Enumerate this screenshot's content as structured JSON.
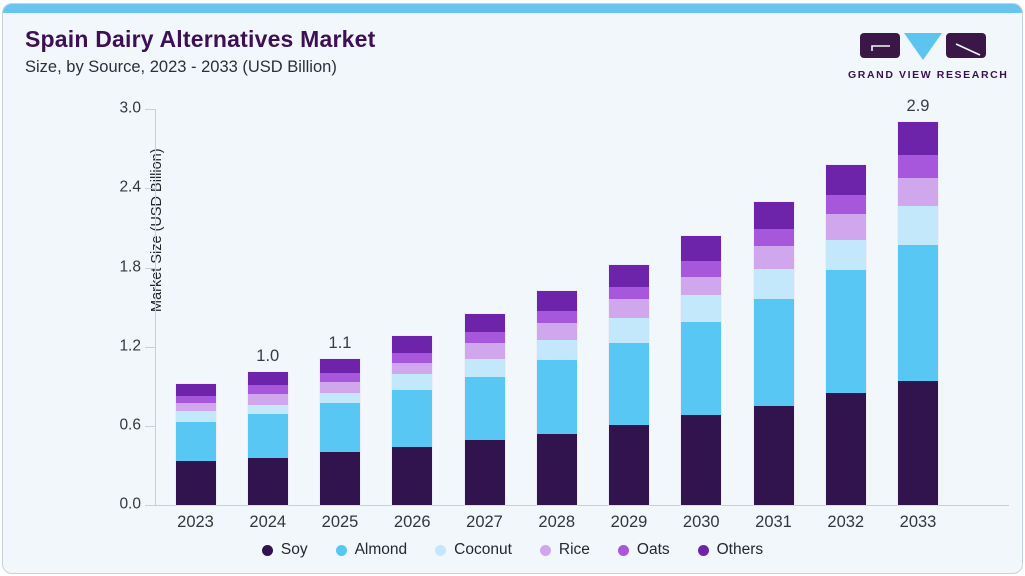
{
  "page": {
    "title": "Spain Dairy Alternatives Market",
    "subtitle": "Size, by Source, 2023 - 2033 (USD Billion)",
    "brand_name": "GRAND VIEW RESEARCH"
  },
  "colors": {
    "accent_strip": "#67c5ef",
    "card_background": "#f2f7fb",
    "title_purple": "#3d1056",
    "axis_line": "#c8cfd8",
    "logo_dark": "#3a1747",
    "logo_blue": "#5bc5f0"
  },
  "chart_data": {
    "type": "bar",
    "stacked": true,
    "title": "Spain Dairy Alternatives Market Size, by Source, 2023 - 2033 (USD Billion)",
    "xlabel": "",
    "ylabel": "Market Size (USD Billion)",
    "ylim": [
      0,
      3.0
    ],
    "ytick_labels": [
      "0.0",
      "0.6",
      "1.2",
      "1.8",
      "2.4",
      "3.0"
    ],
    "grid": false,
    "legend_position": "bottom",
    "categories": [
      "2023",
      "2024",
      "2025",
      "2026",
      "2027",
      "2028",
      "2029",
      "2030",
      "2031",
      "2032",
      "2033"
    ],
    "series": [
      {
        "name": "Soy",
        "color": "#31134d",
        "values": [
          0.33,
          0.36,
          0.4,
          0.44,
          0.49,
          0.54,
          0.61,
          0.68,
          0.75,
          0.85,
          0.94
        ]
      },
      {
        "name": "Almond",
        "color": "#58c7f3",
        "values": [
          0.3,
          0.33,
          0.37,
          0.43,
          0.48,
          0.56,
          0.62,
          0.71,
          0.81,
          0.93,
          1.03
        ]
      },
      {
        "name": "Coconut",
        "color": "#c3e8fb",
        "values": [
          0.08,
          0.07,
          0.08,
          0.12,
          0.14,
          0.15,
          0.19,
          0.2,
          0.23,
          0.23,
          0.3
        ]
      },
      {
        "name": "Rice",
        "color": "#d0a7ec",
        "values": [
          0.06,
          0.08,
          0.08,
          0.09,
          0.12,
          0.13,
          0.14,
          0.14,
          0.17,
          0.2,
          0.21
        ]
      },
      {
        "name": "Oats",
        "color": "#a757dc",
        "values": [
          0.06,
          0.07,
          0.07,
          0.07,
          0.08,
          0.09,
          0.09,
          0.12,
          0.13,
          0.14,
          0.17
        ]
      },
      {
        "name": "Others",
        "color": "#6e23ab",
        "values": [
          0.09,
          0.1,
          0.11,
          0.13,
          0.14,
          0.15,
          0.17,
          0.19,
          0.21,
          0.23,
          0.25
        ]
      }
    ],
    "totals": [
      0.92,
      1.01,
      1.11,
      1.28,
      1.45,
      1.62,
      1.82,
      2.04,
      2.3,
      2.58,
      2.9
    ],
    "bar_labels": [
      {
        "category": "2024",
        "text": "1.0"
      },
      {
        "category": "2025",
        "text": "1.1"
      },
      {
        "category": "2033",
        "text": "2.9"
      }
    ]
  }
}
